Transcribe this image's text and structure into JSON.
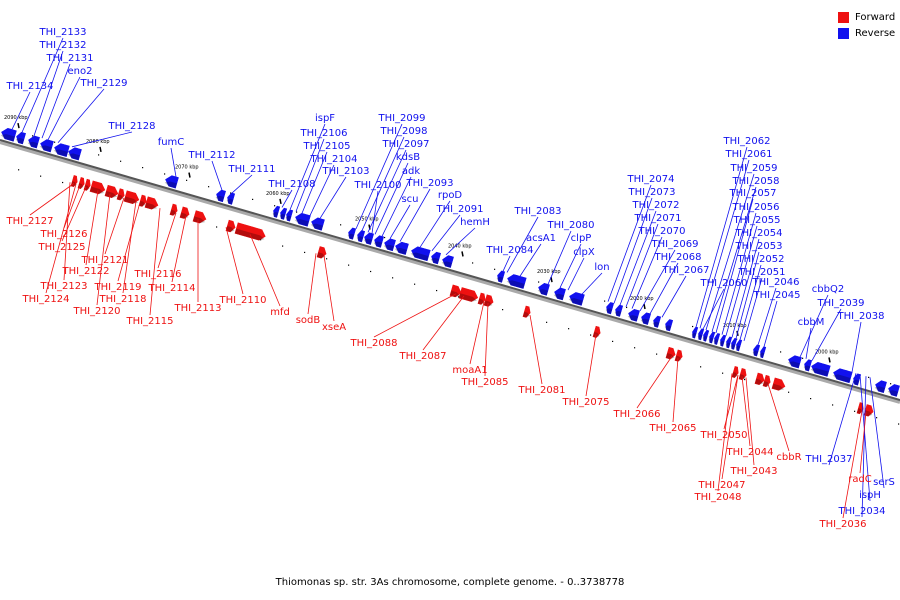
{
  "legend": {
    "forward": {
      "label": "Forward",
      "color": "#ee1111"
    },
    "reverse": {
      "label": "Reverse",
      "color": "#1111ee"
    }
  },
  "caption": "Thiomonas sp. str. 3As chromosome, complete genome. - 0..3738778",
  "scale_ticks": [
    "2090 kbp",
    "2080 kbp",
    "2070 kbp",
    "2060 kbp",
    "2050 kbp",
    "2040 kbp",
    "2030 kbp",
    "2020 kbp",
    "2010 kbp",
    "2000 kbp"
  ],
  "reverse_labels": [
    "THI_2133",
    "THI_2132",
    "THI_2131",
    "eno2",
    "THI_2134",
    "THI_2129",
    "THI_2128",
    "fumC",
    "THI_2112",
    "THI_2111",
    "ispF",
    "THI_2106",
    "THI_2105",
    "THI_2104",
    "THI_2103",
    "THI_2108",
    "THI_2099",
    "THI_2098",
    "THI_2097",
    "kdsB",
    "adk",
    "THI_2093",
    "THI_2100",
    "scu",
    "rpoD",
    "THI_2091",
    "hemH",
    "THI_2083",
    "acsA1",
    "THI_2080",
    "THI_2084",
    "clpP",
    "clpX",
    "lon",
    "THI_2074",
    "THI_2073",
    "THI_2072",
    "THI_2071",
    "THI_2070",
    "THI_2069",
    "THI_2068",
    "THI_2067",
    "THI_2062",
    "THI_2061",
    "THI_2059",
    "THI_2058",
    "THI_2057",
    "THI_2056",
    "THI_2055",
    "THI_2054",
    "THI_2053",
    "THI_2052",
    "THI_2051",
    "THI_2046",
    "THI_2060",
    "THI_2045",
    "cbbQ2",
    "THI_2039",
    "cbbM",
    "THI_2038",
    "THI_2037",
    "serS",
    "ispH",
    "THI_2034"
  ],
  "forward_labels": [
    "THI_2127",
    "THI_2126",
    "THI_2125",
    "THI_2121",
    "THI_2123",
    "THI_2122",
    "THI_2124",
    "THI_2119",
    "THI_2116",
    "THI_2120",
    "THI_2118",
    "THI_2114",
    "THI_2115",
    "THI_2113",
    "THI_2110",
    "mfd",
    "sodB",
    "xseA",
    "THI_2088",
    "THI_2087",
    "moaA1",
    "THI_2085",
    "THI_2081",
    "THI_2075",
    "THI_2066",
    "THI_2065",
    "THI_2050",
    "THI_2044",
    "THI_2043",
    "cbbR",
    "THI_2047",
    "THI_2048",
    "radC",
    "THI_2036"
  ]
}
